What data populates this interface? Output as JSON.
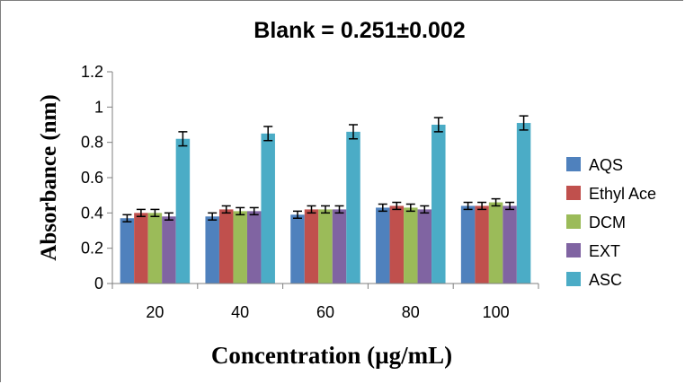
{
  "chart_data": {
    "type": "bar",
    "title": "Blank = 0.251±0.002",
    "xlabel": "Concentration (µg/mL)",
    "ylabel": "Absorbance (nm)",
    "ylim": [
      0,
      1.2
    ],
    "yticks": [
      "0",
      "0.2",
      "0.4",
      "0.6",
      "0.8",
      "1",
      "1.2"
    ],
    "categories": [
      "20",
      "40",
      "60",
      "80",
      "100"
    ],
    "series": [
      {
        "name": "AQS",
        "color": "#4F81BD",
        "values": [
          0.37,
          0.38,
          0.39,
          0.43,
          0.44
        ],
        "errors": [
          0.02,
          0.02,
          0.02,
          0.02,
          0.02
        ]
      },
      {
        "name": "Ethyl Ace",
        "color": "#C0504D",
        "values": [
          0.4,
          0.42,
          0.42,
          0.44,
          0.44
        ],
        "errors": [
          0.02,
          0.02,
          0.02,
          0.02,
          0.02
        ]
      },
      {
        "name": "DCM",
        "color": "#9BBB59",
        "values": [
          0.4,
          0.41,
          0.42,
          0.43,
          0.46
        ],
        "errors": [
          0.02,
          0.02,
          0.02,
          0.02,
          0.02
        ]
      },
      {
        "name": "EXT",
        "color": "#8064A2",
        "values": [
          0.38,
          0.41,
          0.42,
          0.42,
          0.44
        ],
        "errors": [
          0.02,
          0.02,
          0.02,
          0.02,
          0.02
        ]
      },
      {
        "name": "ASC",
        "color": "#4BACC6",
        "values": [
          0.82,
          0.85,
          0.86,
          0.9,
          0.91
        ],
        "errors": [
          0.04,
          0.04,
          0.04,
          0.04,
          0.04
        ]
      }
    ],
    "grid": false,
    "legend": "right"
  }
}
